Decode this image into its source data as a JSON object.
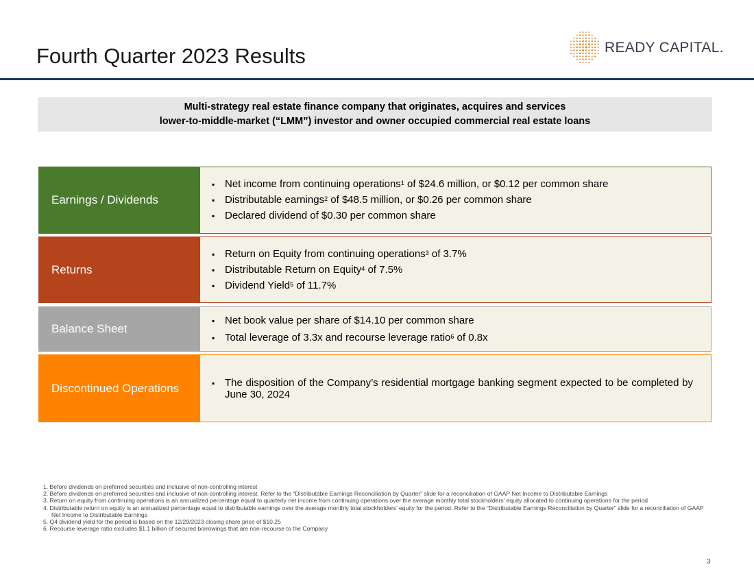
{
  "title": "Fourth Quarter 2023 Results",
  "logo": {
    "text": "READY CAPITAL.",
    "icon": "dot-grid-logo-icon",
    "dot_colors": [
      "#f2a03d",
      "#e07a2b",
      "#c9a45c"
    ]
  },
  "banner": {
    "line1": "Multi-strategy real estate finance company that originates, acquires and services",
    "line2": "lower-to-middle-market (“LMM”) investor and owner occupied commercial real estate loans"
  },
  "sections": [
    {
      "label": "Earnings / Dividends",
      "color": "#4a7a2c",
      "bullets": [
        {
          "pre": "Net income from continuing operations",
          "sup": "1",
          "post": " of $24.6 million, or $0.12 per common share"
        },
        {
          "pre": "Distributable earnings",
          "sup": "2",
          "post": " of $48.5 million, or $0.26 per common share"
        },
        {
          "pre": "Declared dividend of $0.30 per common share",
          "sup": "",
          "post": ""
        }
      ]
    },
    {
      "label": "Returns",
      "color": "#b5431c",
      "bullets": [
        {
          "pre": "Return on Equity from continuing operations",
          "sup": "3",
          "post": " of 3.7%"
        },
        {
          "pre": "Distributable Return on Equity",
          "sup": "4",
          "post": " of 7.5%"
        },
        {
          "pre": "Dividend Yield",
          "sup": "5",
          "post": " of 11.7%"
        }
      ]
    },
    {
      "label": "Balance Sheet",
      "color": "#a6a6a6",
      "bullets": [
        {
          "pre": "Net book value per share of $14.10 per common share",
          "sup": "",
          "post": ""
        },
        {
          "pre": "Total leverage of 3.3x and recourse leverage ratio",
          "sup": "6",
          "post": " of 0.8x"
        }
      ]
    },
    {
      "label": "Discontinued Operations",
      "color": "#ff8200",
      "bullets": [
        {
          "pre": "The disposition of the Company’s residential mortgage banking segment expected to be completed by June 30, 2024",
          "sup": "",
          "post": ""
        }
      ]
    }
  ],
  "footnotes": [
    "1. Before dividends on preferred securities and inclusive of non-controlling interest",
    "2. Before dividends on preferred securities and inclusive of non-controlling interest. Refer to the “Distributable Earnings Reconciliation by Quarter” slide for a reconciliation of GAAP Net Income to Distributable Earnings",
    "3. Return on equity from continuing operations is an annualized percentage equal to quarterly net income from continuing operations over the average monthly total stockholders’ equity allocated to continuing operations for the period",
    "4. Distributable return on equity is an annualized percentage equal to distributable earnings over the average monthly total stockholders’ equity for the period. Refer to the “Distributable Earnings Reconciliation by Quarter” slide for a reconciliation of GAAP Net Income to Distributable Earnings",
    "5. Q4 dividend yield for the period is based on the 12/29/2023 closing share price of $10.25",
    "6. Recourse leverage ratio excludes $1.1 billion of secured borrowings that are non-recourse to the Company"
  ],
  "page_number": "3"
}
